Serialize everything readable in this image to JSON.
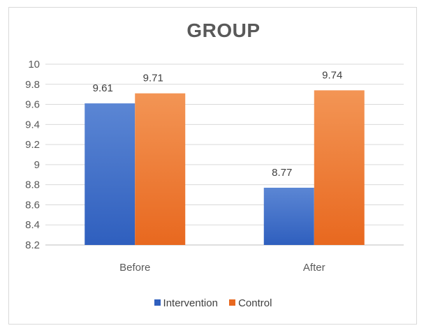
{
  "chart_data": {
    "type": "bar",
    "title": "GROUP",
    "categories": [
      "Before",
      "After"
    ],
    "series": [
      {
        "name": "Intervention",
        "values": [
          9.61,
          8.77
        ],
        "color_top": "#5b86d4",
        "color_bottom": "#2f5fbe"
      },
      {
        "name": "Control",
        "values": [
          9.71,
          9.74
        ],
        "color_top": "#f39555",
        "color_bottom": "#e8681f"
      }
    ],
    "data_labels": [
      "9.61",
      "9.71",
      "8.77",
      "9.74"
    ],
    "ylim": [
      8.2,
      10
    ],
    "yticks": [
      "8.2",
      "8.4",
      "8.6",
      "8.8",
      "9",
      "9.2",
      "9.4",
      "9.6",
      "9.8",
      "10"
    ],
    "grid": true,
    "legend_position": "bottom"
  }
}
